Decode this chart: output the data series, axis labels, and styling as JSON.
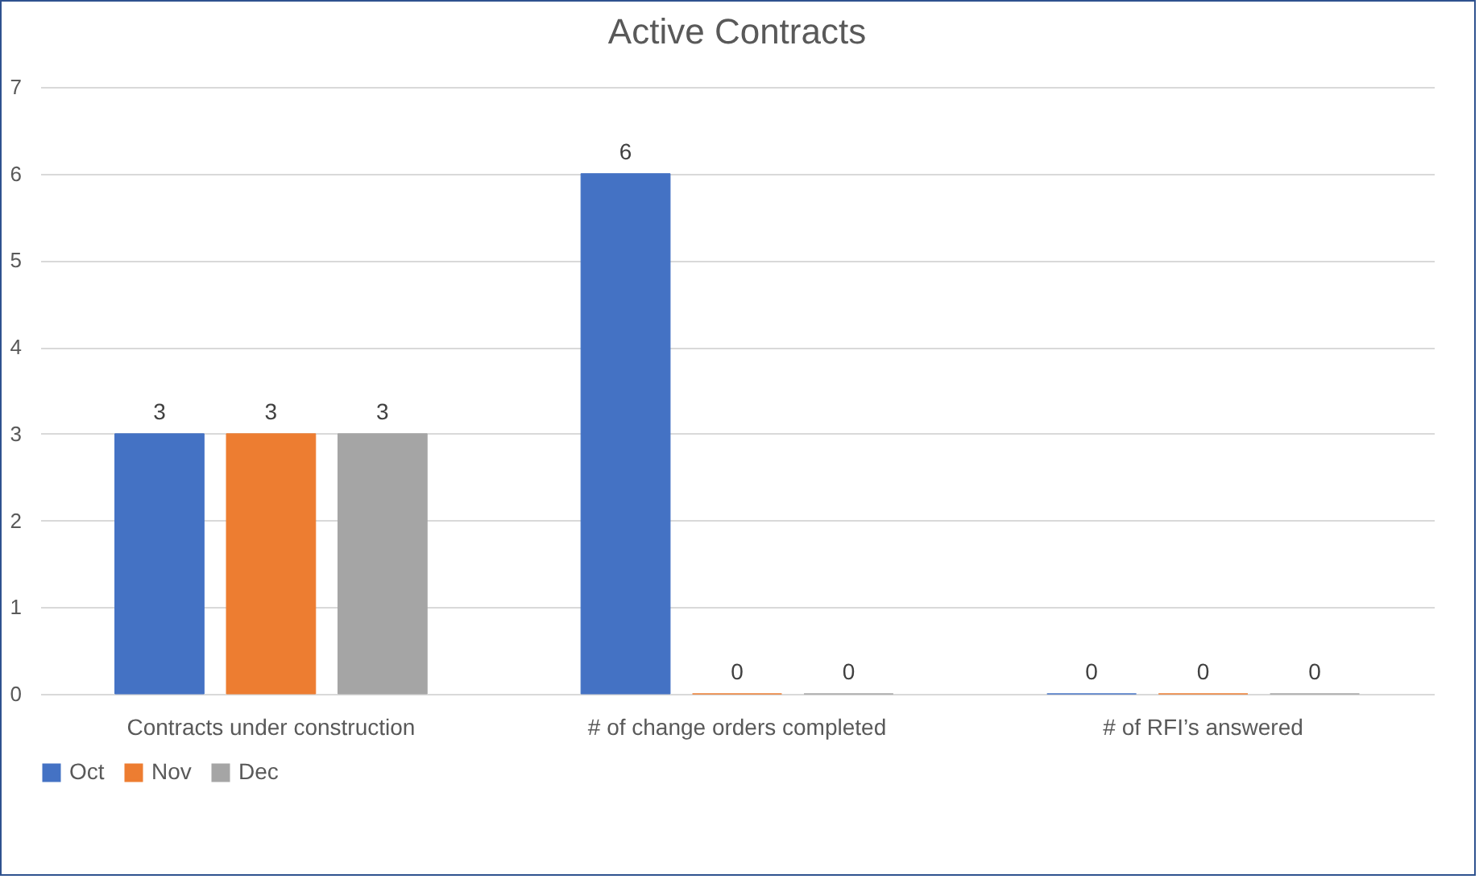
{
  "chart_data": {
    "type": "bar",
    "title": "Active Contracts",
    "categories": [
      "Contracts under construction",
      "# of change orders completed",
      "# of RFI’s answered"
    ],
    "series": [
      {
        "name": "Oct",
        "color": "#4472c4",
        "values": [
          3,
          6,
          0
        ]
      },
      {
        "name": "Nov",
        "color": "#ed7d31",
        "values": [
          3,
          0,
          0
        ]
      },
      {
        "name": "Dec",
        "color": "#a5a5a5",
        "values": [
          3,
          0,
          0
        ]
      }
    ],
    "ylim": [
      0,
      7
    ],
    "yticks": [
      0,
      1,
      2,
      3,
      4,
      5,
      6,
      7
    ],
    "grid": "y",
    "legend": "bottom",
    "data_labels": true
  }
}
